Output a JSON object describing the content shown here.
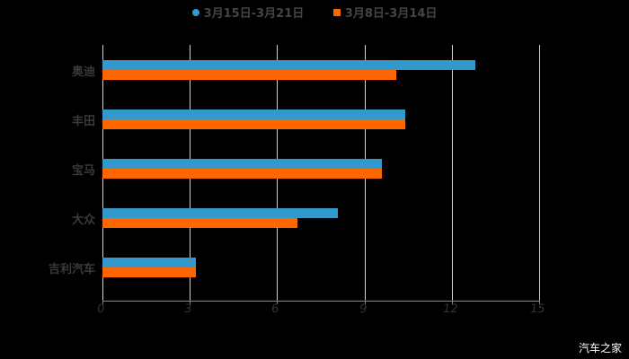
{
  "legend": {
    "series1_label": "3月15日-3月21日",
    "series2_label": "3月8日-3月14日"
  },
  "watermark": "汽车之家",
  "chart_data": {
    "type": "bar",
    "orientation": "horizontal",
    "title": "",
    "categories": [
      "奥迪",
      "丰田",
      "宝马",
      "大众",
      "吉利汽车"
    ],
    "series": [
      {
        "name": "3月15日-3月21日",
        "color": "#3399cc",
        "values": [
          12.8,
          10.4,
          9.6,
          8.1,
          3.2
        ]
      },
      {
        "name": "3月8日-3月14日",
        "color": "#ff6600",
        "values": [
          10.1,
          10.4,
          9.6,
          6.7,
          3.2
        ]
      }
    ],
    "xlabel": "",
    "ylabel": "",
    "xlim": [
      0,
      15
    ],
    "xticks": [
      "0",
      "3",
      "6",
      "9",
      "12",
      "15"
    ],
    "grid": true,
    "legend_position": "top"
  }
}
